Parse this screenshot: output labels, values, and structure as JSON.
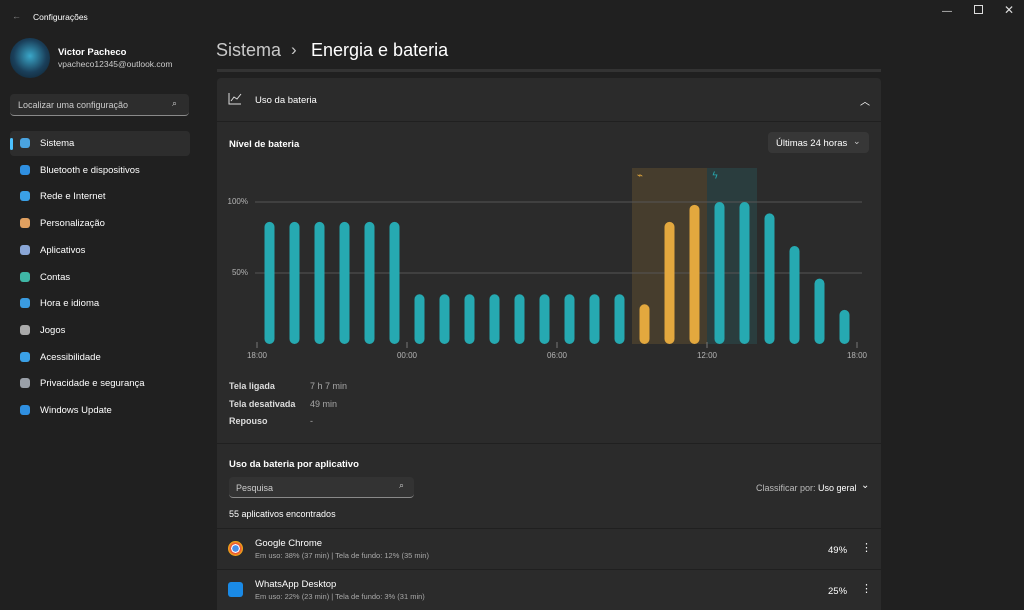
{
  "window": {
    "title": "Configurações"
  },
  "user": {
    "name": "Victor Pacheco",
    "email": "vpacheco12345@outlook.com"
  },
  "search": {
    "placeholder": "Localizar uma configuração"
  },
  "nav": {
    "items": [
      "Sistema",
      "Bluetooth e dispositivos",
      "Rede e Internet",
      "Personalização",
      "Aplicativos",
      "Contas",
      "Hora e idioma",
      "Jogos",
      "Acessibilidade",
      "Privacidade e segurança",
      "Windows Update"
    ]
  },
  "breadcrumb": {
    "parent": "Sistema",
    "current": "Energia e bateria"
  },
  "battery": {
    "header": "Uso da bateria",
    "level_label": "Nível de bateria",
    "range": "Últimas 24 horas",
    "stats": [
      {
        "label": "Tela ligada",
        "value": "7 h 7 min"
      },
      {
        "label": "Tela desativada",
        "value": "49 min"
      },
      {
        "label": "Repouso",
        "value": "-"
      }
    ]
  },
  "chart_data": {
    "type": "bar",
    "x": [
      0.5,
      1.5,
      2.5,
      3.5,
      4.5,
      5.5,
      6.5,
      7.5,
      8.5,
      9.5,
      10.5,
      11.5,
      12.5,
      13.5,
      14.5,
      15.5,
      16.5,
      17.5,
      18.5,
      19.5,
      20.5,
      21.5,
      22.5,
      23.5
    ],
    "values": [
      86,
      86,
      86,
      86,
      86,
      86,
      35,
      35,
      35,
      35,
      35,
      35,
      35,
      35,
      35,
      28,
      86,
      98,
      100,
      100,
      92,
      69,
      46,
      24
    ],
    "colors": [
      "#26a9b1",
      "#26a9b1",
      "#26a9b1",
      "#26a9b1",
      "#26a9b1",
      "#26a9b1",
      "#26a9b1",
      "#26a9b1",
      "#26a9b1",
      "#26a9b1",
      "#26a9b1",
      "#26a9b1",
      "#26a9b1",
      "#26a9b1",
      "#26a9b1",
      "#e3a83e",
      "#e3a83e",
      "#e3a83e",
      "#26a9b1",
      "#26a9b1",
      "#26a9b1",
      "#26a9b1",
      "#26a9b1",
      "#26a9b1"
    ],
    "regions": [
      {
        "from": 15,
        "to": 18,
        "color": "#e3a83e"
      },
      {
        "from": 18,
        "to": 20,
        "color": "#26a9b1"
      }
    ],
    "xlim": [
      0,
      24
    ],
    "xticks": [
      {
        "value": 0,
        "label": "18:00"
      },
      {
        "value": 6,
        "label": "00:00"
      },
      {
        "value": 12,
        "label": "06:00"
      },
      {
        "value": 18,
        "label": "12:00"
      },
      {
        "value": 24,
        "label": "18:00"
      }
    ],
    "ylim": [
      0,
      100
    ],
    "yticks": [
      {
        "value": 50,
        "label": "50%"
      },
      {
        "value": 100,
        "label": "100%"
      }
    ],
    "grid": true
  },
  "apps": {
    "title": "Uso da bateria por aplicativo",
    "search_placeholder": "Pesquisa",
    "sort_label": "Classificar por:",
    "sort_value": "Uso geral",
    "count": "55 aplicativos encontrados",
    "items": [
      {
        "name": "Google Chrome",
        "detail": "Em uso: 38% (37 min) | Tela de fundo: 12% (35 min)",
        "percent": "49%"
      },
      {
        "name": "WhatsApp Desktop",
        "detail": "Em uso: 22% (23 min) | Tela de fundo: 3% (31 min)",
        "percent": "25%"
      }
    ]
  }
}
